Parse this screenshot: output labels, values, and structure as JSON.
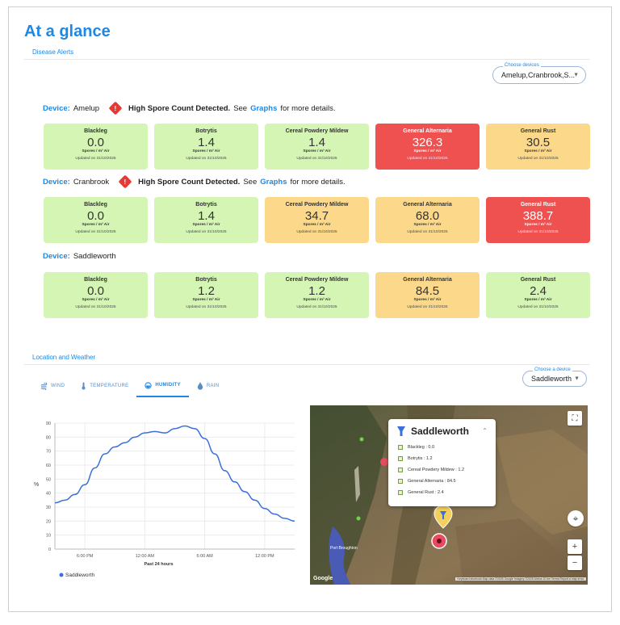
{
  "page": {
    "title": "At a glance"
  },
  "disease_alerts": {
    "label": "Disease Alerts",
    "select_legend": "Choose devices",
    "select_value": "Amelup,Cranbrook,S..."
  },
  "alert_text": {
    "device_key": "Device:",
    "strong": "High Spore Count Detected.",
    "see": "See",
    "link": "Graphs",
    "suffix": "for more details."
  },
  "devices": [
    {
      "name": "Amelup",
      "alert": true,
      "cards": [
        {
          "title": "Blackleg",
          "value": "0.0",
          "unit": "Spores / m³ Air",
          "updated": "Updated on 31/10/2025",
          "level": "green"
        },
        {
          "title": "Botrytis",
          "value": "1.4",
          "unit": "Spores / m³ Air",
          "updated": "Updated on 31/10/2025",
          "level": "green"
        },
        {
          "title": "Cereal Powdery Mildew",
          "value": "1.4",
          "unit": "Spores / m³ Air",
          "updated": "Updated on 31/10/2025",
          "level": "green"
        },
        {
          "title": "General Alternaria",
          "value": "326.3",
          "unit": "Spores / m³ Air",
          "updated": "Updated on 31/10/2025",
          "level": "red"
        },
        {
          "title": "General Rust",
          "value": "30.5",
          "unit": "Spores / m³ Air",
          "updated": "Updated on 31/10/2025",
          "level": "yellow"
        }
      ]
    },
    {
      "name": "Cranbrook",
      "alert": true,
      "cards": [
        {
          "title": "Blackleg",
          "value": "0.0",
          "unit": "Spores / m³ Air",
          "updated": "Updated on 31/10/2025",
          "level": "green"
        },
        {
          "title": "Botrytis",
          "value": "1.4",
          "unit": "Spores / m³ Air",
          "updated": "Updated on 31/10/2025",
          "level": "green"
        },
        {
          "title": "Cereal Powdery Mildew",
          "value": "34.7",
          "unit": "Spores / m³ Air",
          "updated": "Updated on 31/10/2025",
          "level": "yellow"
        },
        {
          "title": "General Alternaria",
          "value": "68.0",
          "unit": "Spores / m³ Air",
          "updated": "Updated on 31/10/2025",
          "level": "yellow"
        },
        {
          "title": "General Rust",
          "value": "388.7",
          "unit": "Spores / m³ Air",
          "updated": "Updated on 31/10/2025",
          "level": "red"
        }
      ]
    },
    {
      "name": "Saddleworth",
      "alert": false,
      "cards": [
        {
          "title": "Blackleg",
          "value": "0.0",
          "unit": "Spores / m³ Air",
          "updated": "Updated on 31/10/2025",
          "level": "green"
        },
        {
          "title": "Botrytis",
          "value": "1.2",
          "unit": "Spores / m³ Air",
          "updated": "Updated on 31/10/2025",
          "level": "green"
        },
        {
          "title": "Cereal Powdery Mildew",
          "value": "1.2",
          "unit": "Spores / m³ Air",
          "updated": "Updated on 31/10/2025",
          "level": "green"
        },
        {
          "title": "General Alternaria",
          "value": "84.5",
          "unit": "Spores / m³ Air",
          "updated": "Updated on 31/10/2025",
          "level": "yellow"
        },
        {
          "title": "General Rust",
          "value": "2.4",
          "unit": "Spores / m³ Air",
          "updated": "Updated on 31/10/2025",
          "level": "green"
        }
      ]
    }
  ],
  "location_weather": {
    "label": "Location and Weather",
    "select_legend": "Choose a device",
    "select_value": "Saddleworth",
    "tabs": [
      {
        "label": "WIND",
        "icon": "wind-icon",
        "active": false
      },
      {
        "label": "TEMPERATURE",
        "icon": "thermometer-icon",
        "active": false
      },
      {
        "label": "HUMIDITY",
        "icon": "humidity-icon",
        "active": true
      },
      {
        "label": "RAIN",
        "icon": "raindrop-icon",
        "active": false
      }
    ]
  },
  "chart_data": {
    "type": "line",
    "title": "",
    "xlabel": "Past 24 hours",
    "ylabel": "%",
    "ylim": [
      0,
      90
    ],
    "yticks": [
      "0",
      "10",
      "20",
      "30",
      "40",
      "50",
      "60",
      "70",
      "80",
      "90"
    ],
    "xticks": [
      {
        "label": "6:00 PM",
        "x": 3
      },
      {
        "label": "12:00 AM",
        "x": 9
      },
      {
        "label": "6:00 AM",
        "x": 15
      },
      {
        "label": "12:00 PM",
        "x": 21
      }
    ],
    "xlim": [
      0,
      24
    ],
    "grid": true,
    "legend_position": "bottom-left",
    "series": [
      {
        "name": "Saddleworth",
        "color": "#3b6fd9",
        "x": [
          0,
          1,
          2,
          3,
          4,
          5,
          6,
          7,
          8,
          9,
          10,
          11,
          12,
          13,
          14,
          15,
          16,
          17,
          18,
          19,
          20,
          21,
          22,
          23,
          24
        ],
        "values": [
          33,
          35,
          39,
          46,
          58,
          68,
          73,
          76,
          80,
          83,
          84,
          83,
          86,
          88,
          86,
          79,
          68,
          56,
          48,
          41,
          35,
          29,
          25,
          22,
          20
        ]
      }
    ]
  },
  "map": {
    "popup_title": "Saddleworth",
    "popup_items": [
      {
        "label": "Blackleg : 0.0"
      },
      {
        "label": "Botrytis : 1.2"
      },
      {
        "label": "Cereal Powdery Mildew : 1.2"
      },
      {
        "label": "General Alternaria : 84.5"
      },
      {
        "label": "General Rust : 2.4"
      }
    ],
    "place_label": "Port Broughton",
    "attribution": "Keyboard shortcuts   Map data ©2025 Google Imagery ©2025 Airbus   10 km   Terms   Report a map error",
    "google_logo": "Google",
    "colors": {
      "marker_yellow": "#f4cf5c",
      "marker_red": "#e84a5f",
      "water": "#4a5bb5"
    }
  },
  "colors": {
    "accent": "#1e88e5",
    "green": "#d4f5b3",
    "yellow": "#fcd98a",
    "red": "#ef5050"
  }
}
